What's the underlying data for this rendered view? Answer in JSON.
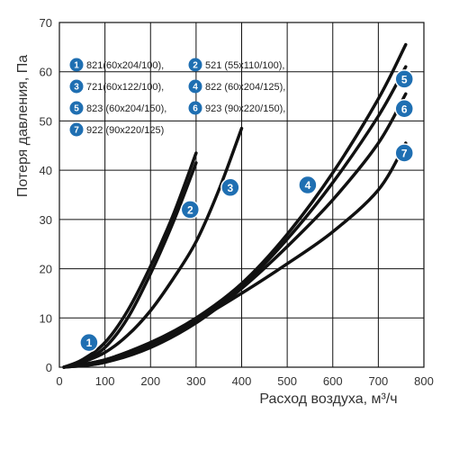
{
  "chart_data": {
    "type": "line",
    "xlabel": "Расход воздуха, м³/ч",
    "ylabel": "Потеря давления, Па",
    "xlim": [
      0,
      800
    ],
    "ylim": [
      0,
      70
    ],
    "xticks": [
      "0",
      "100",
      "200",
      "300",
      "400",
      "500",
      "600",
      "700",
      "800"
    ],
    "yticks": [
      "0",
      "10",
      "20",
      "30",
      "40",
      "50",
      "60",
      "70"
    ],
    "grid": true,
    "legend_position": "top-left",
    "line_color": "#111111",
    "marker_color": "#1f6fb2",
    "series": [
      {
        "id": "1",
        "name": "821(60x204/100),",
        "x": [
          10,
          50,
          100,
          150,
          200,
          250,
          300
        ],
        "y": [
          0,
          1.5,
          5,
          11.5,
          20.5,
          31,
          43.5
        ]
      },
      {
        "id": "2",
        "name": "521 (55x110/100),",
        "x": [
          10,
          50,
          100,
          150,
          200,
          250,
          300
        ],
        "y": [
          0,
          1.2,
          4,
          10,
          19,
          29.5,
          41.5
        ]
      },
      {
        "id": "3",
        "name": "721(60x122/100),",
        "x": [
          10,
          50,
          100,
          150,
          200,
          250,
          300,
          350,
          400
        ],
        "y": [
          0,
          1,
          3,
          6.5,
          11.5,
          18,
          25.5,
          36,
          48.5
        ]
      },
      {
        "id": "4",
        "name": "822 (60x204/125),",
        "x": [
          10,
          100,
          200,
          300,
          400,
          500,
          600,
          700,
          760
        ],
        "y": [
          0,
          1.5,
          5,
          10,
          17,
          27,
          39.5,
          54.5,
          65.5
        ]
      },
      {
        "id": "5",
        "name": "823 (60x204/150),",
        "x": [
          10,
          100,
          200,
          300,
          400,
          500,
          600,
          700,
          760
        ],
        "y": [
          0,
          1,
          4.5,
          9.5,
          16.5,
          26,
          37.5,
          51,
          61
        ]
      },
      {
        "id": "6",
        "name": "923 (90x220/150),",
        "x": [
          10,
          100,
          200,
          300,
          400,
          500,
          600,
          700,
          760
        ],
        "y": [
          0,
          1,
          4,
          9,
          16,
          24.5,
          34,
          45.5,
          55.5
        ]
      },
      {
        "id": "7",
        "name": "922 (90x220/125)",
        "x": [
          10,
          100,
          200,
          300,
          400,
          500,
          600,
          700,
          760
        ],
        "y": [
          0,
          1.5,
          5,
          9.5,
          15,
          21,
          27.5,
          36,
          45.5
        ]
      }
    ],
    "markers": [
      {
        "label": "1",
        "x": 65,
        "y": 5
      },
      {
        "label": "2",
        "x": 287,
        "y": 32
      },
      {
        "label": "3",
        "x": 375,
        "y": 36.5
      },
      {
        "label": "4",
        "x": 545,
        "y": 37
      },
      {
        "label": "5",
        "x": 757,
        "y": 58.5
      },
      {
        "label": "6",
        "x": 757,
        "y": 52.5
      },
      {
        "label": "7",
        "x": 757,
        "y": 43.5
      }
    ]
  }
}
